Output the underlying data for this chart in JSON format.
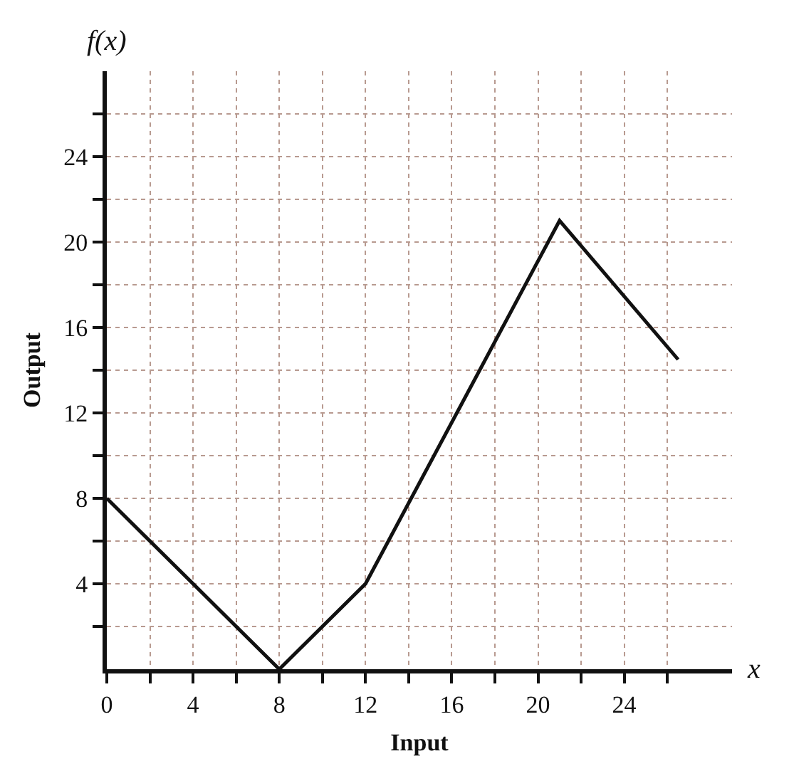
{
  "chart_data": {
    "type": "line",
    "xlabel": "Input",
    "ylabel": "Output",
    "annotations": [
      "f(x)",
      "x"
    ],
    "x": [
      0,
      8,
      12,
      21,
      26.5
    ],
    "series": [
      {
        "color": "#111111",
        "values": [
          8,
          0,
          4,
          21,
          14.5
        ]
      }
    ],
    "xlim": [
      0,
      29
    ],
    "ylim": [
      0,
      28
    ],
    "xticks": [
      0,
      {
        "value": 2,
        "label": null
      },
      4,
      {
        "value": 6,
        "label": null
      },
      8,
      {
        "value": 10,
        "label": null
      },
      12,
      {
        "value": 14,
        "label": null
      },
      16,
      {
        "value": 18,
        "label": null
      },
      20,
      {
        "value": 22,
        "label": null
      },
      24,
      {
        "value": 26,
        "label": null
      }
    ],
    "yticks": [
      {
        "value": 2,
        "label": null
      },
      4,
      {
        "value": 6,
        "label": null
      },
      8,
      {
        "value": 10,
        "label": null
      },
      12,
      {
        "value": 14,
        "label": null
      },
      16,
      {
        "value": 18,
        "label": null
      },
      20,
      {
        "value": 22,
        "label": null
      },
      24,
      {
        "value": 26,
        "label": null
      }
    ],
    "grid": true,
    "line_style": "solid",
    "marker": "none"
  }
}
